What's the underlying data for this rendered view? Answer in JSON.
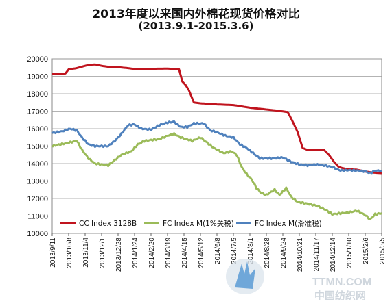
{
  "chart_data": {
    "type": "line",
    "title": "2013年度以来国内外棉花现货价格对比",
    "subtitle": "(2013.9.1-2015.3.6)",
    "xlabel": "",
    "ylabel": "",
    "ylim": [
      10000,
      20000
    ],
    "y_ticks": [
      10000,
      11000,
      12000,
      13000,
      14000,
      15000,
      16000,
      17000,
      18000,
      19000,
      20000
    ],
    "x_tick_labels": [
      "2013/9/11",
      "2013/10/8",
      "2013/11/4",
      "2013/12/1",
      "2013/12/28",
      "2014/1/24",
      "2014/2/20",
      "2014/3/19",
      "2014/4/15",
      "2014/5/12",
      "2014/6/8",
      "2014/7/5",
      "2014/8/1",
      "2014/8/28",
      "2014/9/24",
      "2014/10/21",
      "2014/11/17",
      "2014/12/14",
      "2015/1/10",
      "2015/2/6",
      "2015/3/5"
    ],
    "grid": "horizontal",
    "legend_position": "bottom",
    "series": [
      {
        "name": "CC Index 3128B",
        "color": "#c0141e",
        "points": [
          [
            0,
            19150
          ],
          [
            0.8,
            19160
          ],
          [
            1.0,
            19400
          ],
          [
            1.4,
            19450
          ],
          [
            1.8,
            19550
          ],
          [
            2.2,
            19650
          ],
          [
            2.6,
            19680
          ],
          [
            3.0,
            19600
          ],
          [
            3.5,
            19530
          ],
          [
            4.0,
            19520
          ],
          [
            4.5,
            19480
          ],
          [
            5.0,
            19420
          ],
          [
            6.0,
            19430
          ],
          [
            7.0,
            19440
          ],
          [
            7.7,
            19400
          ],
          [
            7.9,
            18700
          ],
          [
            8.1,
            18500
          ],
          [
            8.3,
            18200
          ],
          [
            8.6,
            17500
          ],
          [
            9.0,
            17450
          ],
          [
            10.0,
            17390
          ],
          [
            11.0,
            17350
          ],
          [
            12.0,
            17200
          ],
          [
            13.0,
            17100
          ],
          [
            13.5,
            17050
          ],
          [
            14.3,
            16950
          ],
          [
            14.6,
            16400
          ],
          [
            14.9,
            15800
          ],
          [
            15.2,
            14900
          ],
          [
            15.5,
            14780
          ],
          [
            16.0,
            14790
          ],
          [
            16.5,
            14780
          ],
          [
            16.8,
            14500
          ],
          [
            17.1,
            14100
          ],
          [
            17.4,
            13800
          ],
          [
            17.8,
            13700
          ],
          [
            18.5,
            13650
          ],
          [
            19.0,
            13540
          ],
          [
            19.5,
            13480
          ],
          [
            20.0,
            13450
          ]
        ]
      },
      {
        "name": "FC Index M(1%关税)",
        "color": "#9bbb59",
        "points": [
          [
            0,
            15000
          ],
          [
            0.5,
            15100
          ],
          [
            1.0,
            15200
          ],
          [
            1.5,
            15300
          ],
          [
            1.8,
            14800
          ],
          [
            2.2,
            14300
          ],
          [
            2.6,
            14000
          ],
          [
            3.0,
            13950
          ],
          [
            3.4,
            13900
          ],
          [
            3.8,
            14200
          ],
          [
            4.2,
            14500
          ],
          [
            4.8,
            14700
          ],
          [
            5.2,
            15100
          ],
          [
            5.6,
            15300
          ],
          [
            6.0,
            15350
          ],
          [
            6.5,
            15400
          ],
          [
            7.0,
            15600
          ],
          [
            7.4,
            15700
          ],
          [
            7.8,
            15500
          ],
          [
            8.5,
            15300
          ],
          [
            9.0,
            15500
          ],
          [
            9.4,
            15200
          ],
          [
            9.8,
            14900
          ],
          [
            10.4,
            14600
          ],
          [
            10.9,
            14700
          ],
          [
            11.2,
            14500
          ],
          [
            11.5,
            13800
          ],
          [
            11.8,
            13400
          ],
          [
            12.1,
            13100
          ],
          [
            12.4,
            12600
          ],
          [
            12.7,
            12300
          ],
          [
            13.0,
            12200
          ],
          [
            13.5,
            12500
          ],
          [
            13.8,
            12200
          ],
          [
            14.2,
            12600
          ],
          [
            14.5,
            12100
          ],
          [
            14.9,
            11800
          ],
          [
            15.5,
            11700
          ],
          [
            16.0,
            11600
          ],
          [
            16.5,
            11400
          ],
          [
            17.0,
            11100
          ],
          [
            17.5,
            11150
          ],
          [
            18.0,
            11200
          ],
          [
            18.5,
            11300
          ],
          [
            19.0,
            11050
          ],
          [
            19.3,
            10800
          ],
          [
            19.6,
            11100
          ],
          [
            20.0,
            11150
          ]
        ]
      },
      {
        "name": "FC Index M(滑准税)",
        "color": "#4f81bd",
        "points": [
          [
            0,
            15750
          ],
          [
            0.6,
            15850
          ],
          [
            1.1,
            16000
          ],
          [
            1.5,
            15900
          ],
          [
            1.8,
            15500
          ],
          [
            2.2,
            15100
          ],
          [
            2.6,
            15000
          ],
          [
            3.0,
            15000
          ],
          [
            3.4,
            15000
          ],
          [
            3.8,
            15300
          ],
          [
            4.2,
            15700
          ],
          [
            4.6,
            16200
          ],
          [
            5.0,
            16250
          ],
          [
            5.4,
            16000
          ],
          [
            6.0,
            15950
          ],
          [
            6.5,
            16200
          ],
          [
            7.0,
            16350
          ],
          [
            7.4,
            16400
          ],
          [
            7.8,
            16100
          ],
          [
            8.2,
            16100
          ],
          [
            8.6,
            16300
          ],
          [
            9.2,
            16300
          ],
          [
            9.6,
            15900
          ],
          [
            10.0,
            15800
          ],
          [
            10.5,
            15600
          ],
          [
            11.0,
            15500
          ],
          [
            11.4,
            15100
          ],
          [
            11.8,
            14900
          ],
          [
            12.2,
            14600
          ],
          [
            12.6,
            14300
          ],
          [
            13.0,
            14300
          ],
          [
            13.5,
            14300
          ],
          [
            14.0,
            14350
          ],
          [
            14.5,
            14100
          ],
          [
            15.0,
            13950
          ],
          [
            15.5,
            13900
          ],
          [
            16.0,
            13950
          ],
          [
            16.5,
            13900
          ],
          [
            17.0,
            13800
          ],
          [
            17.5,
            13600
          ],
          [
            18.0,
            13620
          ],
          [
            18.5,
            13600
          ],
          [
            19.0,
            13550
          ],
          [
            19.3,
            13450
          ],
          [
            19.6,
            13600
          ],
          [
            20.0,
            13580
          ]
        ]
      }
    ]
  },
  "watermark": {
    "brand": "TTMN.COM",
    "cn": "中国纺织网"
  }
}
